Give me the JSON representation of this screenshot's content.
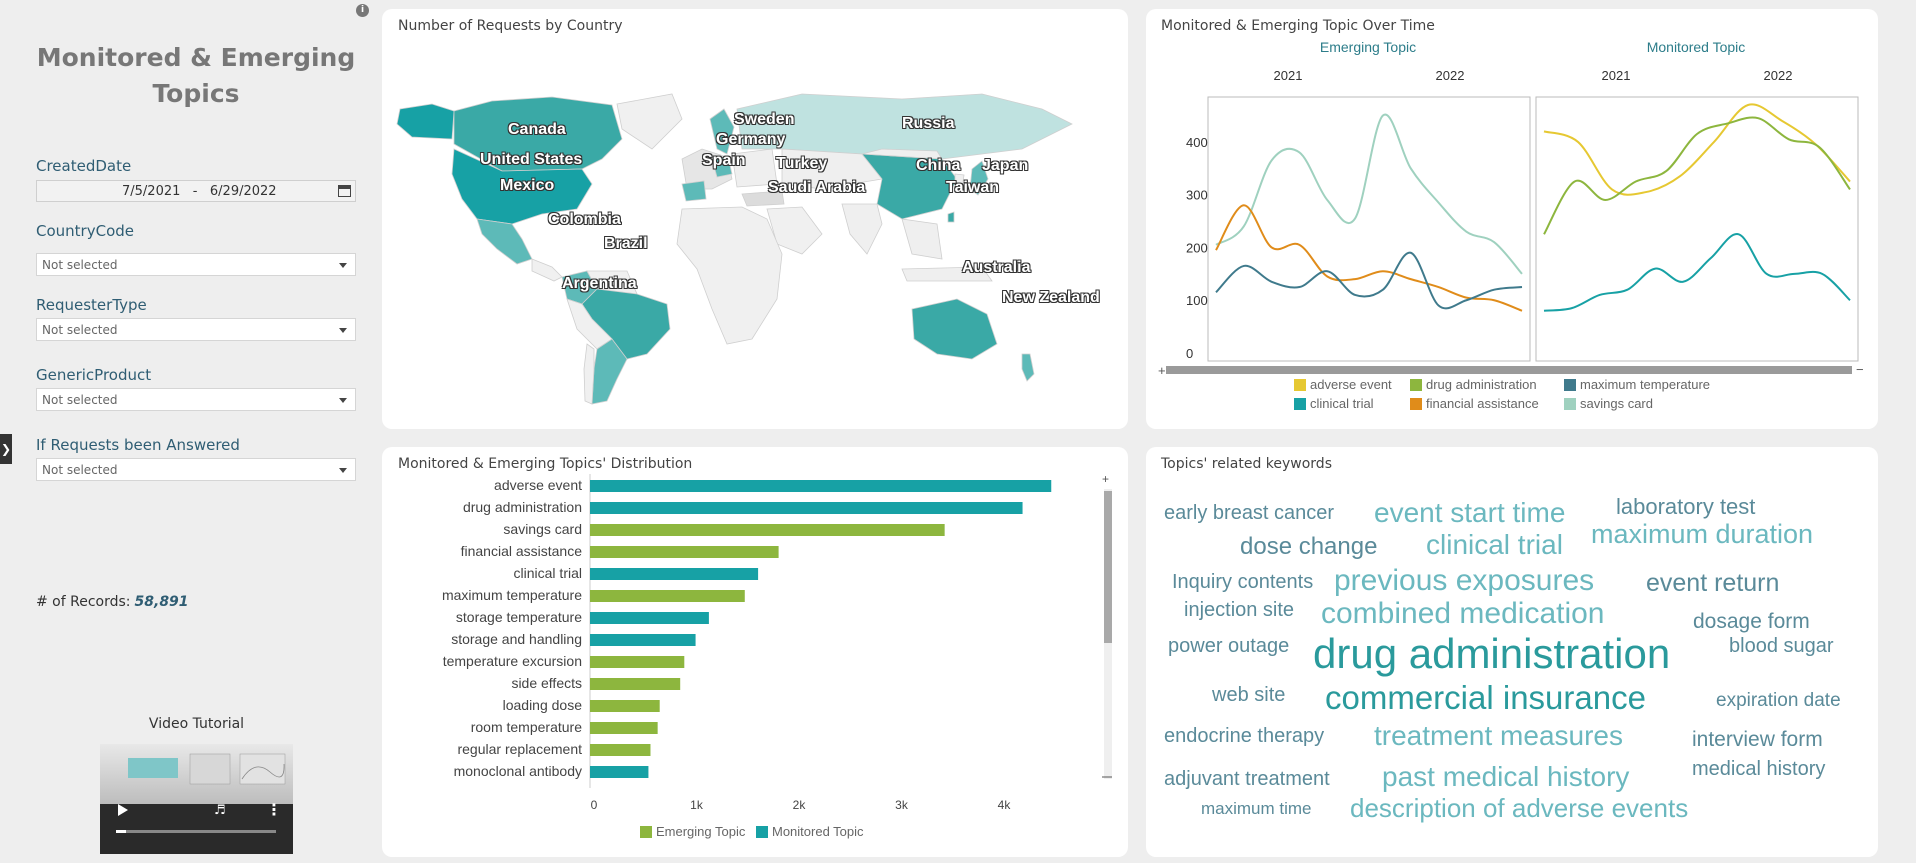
{
  "sidebar": {
    "title_line1": "Monitored & Emerging",
    "title_line2": "Topics",
    "info_icon": "i",
    "filters": {
      "created_date_label": "CreatedDate",
      "date_from": "7/5/2021",
      "date_sep": "-",
      "date_to": "6/29/2022",
      "country_label": "CountryCode",
      "country_value": "Not selected",
      "requester_label": "RequesterType",
      "requester_value": "Not selected",
      "product_label": "GenericProduct",
      "product_value": "Not selected",
      "answered_label": "If Requests been Answered",
      "answered_value": "Not selected"
    },
    "records_label": "# of Records:",
    "records_value": "58,891",
    "video_label": "Video Tutorial"
  },
  "map": {
    "title": "Number of Requests by Country",
    "labels": [
      "Canada",
      "United States",
      "Mexico",
      "Colombia",
      "Brazil",
      "Argentina",
      "Sweden",
      "Germany",
      "Spain",
      "Turkey",
      "Saudi Arabia",
      "Russia",
      "China",
      "Japan",
      "Taiwan",
      "Australia",
      "New Zealand"
    ]
  },
  "line": {
    "title": "Monitored & Emerging Topic Over Time",
    "panel_left": "Emerging Topic",
    "panel_right": "Monitored Topic",
    "year_2021": "2021",
    "year_2022": "2022",
    "y_ticks": [
      "400",
      "300",
      "200",
      "100",
      "0"
    ],
    "legend": [
      "adverse event",
      "drug administration",
      "maximum temperature",
      "clinical trial",
      "financial assistance",
      "savings card"
    ],
    "colors": {
      "adverse event": "#e6c832",
      "drug administration": "#8db63e",
      "maximum temperature": "#3f7a8c",
      "clinical trial": "#17a1a5",
      "financial assistance": "#e08c1a",
      "savings card": "#9fd1bf"
    }
  },
  "chart_data": [
    {
      "type": "bar",
      "title": "Monitored & Emerging Topics' Distribution",
      "categories": [
        "adverse event",
        "drug administration",
        "savings card",
        "financial assistance",
        "clinical trial",
        "maximum temperature",
        "storage temperature",
        "storage and handling",
        "temperature excursion",
        "side effects",
        "loading dose",
        "room temperature",
        "regular replacement",
        "monoclonal antibody"
      ],
      "values": [
        4500,
        4220,
        3460,
        1840,
        1640,
        1510,
        1160,
        1030,
        920,
        880,
        680,
        660,
        590,
        570
      ],
      "groups": [
        "Monitored Topic",
        "Monitored Topic",
        "Emerging Topic",
        "Emerging Topic",
        "Monitored Topic",
        "Emerging Topic",
        "Monitored Topic",
        "Monitored Topic",
        "Emerging Topic",
        "Emerging Topic",
        "Emerging Topic",
        "Emerging Topic",
        "Emerging Topic",
        "Monitored Topic"
      ],
      "x_ticks": [
        "0",
        "1k",
        "2k",
        "3k",
        "4k"
      ],
      "xlim": [
        0,
        4800
      ],
      "legend": [
        "Emerging Topic",
        "Monitored Topic"
      ],
      "colors": {
        "Emerging Topic": "#8db63e",
        "Monitored Topic": "#17a1a5"
      }
    },
    {
      "type": "line",
      "title": "Monitored & Emerging Topic Over Time",
      "ylim": [
        0,
        470
      ],
      "panels": [
        {
          "name": "Emerging Topic",
          "series": [
            {
              "name": "savings card",
              "values": [
                205,
                240,
                365,
                380,
                290,
                255,
                450,
                350,
                285,
                230,
                210,
                150
              ]
            },
            {
              "name": "financial assistance",
              "values": [
                195,
                280,
                200,
                205,
                145,
                140,
                155,
                140,
                125,
                105,
                100,
                80
              ]
            },
            {
              "name": "maximum temperature",
              "values": [
                115,
                165,
                135,
                125,
                155,
                110,
                120,
                190,
                90,
                100,
                120,
                125
              ]
            }
          ]
        },
        {
          "name": "Monitored Topic",
          "series": [
            {
              "name": "adverse event",
              "values": [
                420,
                400,
                310,
                305,
                335,
                400,
                470,
                440,
                395,
                325
              ]
            },
            {
              "name": "drug administration",
              "values": [
                225,
                325,
                290,
                325,
                345,
                415,
                435,
                445,
                405,
                390,
                310
              ]
            },
            {
              "name": "clinical trial",
              "values": [
                80,
                85,
                110,
                120,
                160,
                135,
                180,
                225,
                150,
                150,
                150,
                100
              ]
            }
          ]
        }
      ]
    }
  ],
  "bars": {
    "title": "Monitored & Emerging Topics' Distribution",
    "legend_emerging": "Emerging Topic",
    "legend_monitored": "Monitored Topic"
  },
  "keywords": {
    "title": "Topics' related keywords",
    "words": [
      {
        "t": "early breast cancer",
        "c": "#5a8a99"
      },
      {
        "t": "event start time",
        "c": "#6bb8bf"
      },
      {
        "t": "laboratory test",
        "c": "#5a8a99"
      },
      {
        "t": "dose change",
        "c": "#5a8a99"
      },
      {
        "t": "clinical trial",
        "c": "#6bb8bf"
      },
      {
        "t": "maximum duration",
        "c": "#6bb8bf"
      },
      {
        "t": "Inquiry contents",
        "c": "#5a8a99"
      },
      {
        "t": "previous exposures",
        "c": "#6bb8bf"
      },
      {
        "t": "event return",
        "c": "#5a8a99"
      },
      {
        "t": "injection site",
        "c": "#5a8a99"
      },
      {
        "t": "combined medication",
        "c": "#6bb8bf"
      },
      {
        "t": "dosage form",
        "c": "#5a8a99"
      },
      {
        "t": "power outage",
        "c": "#5a8a99"
      },
      {
        "t": "drug administration",
        "c": "#2a9a9c"
      },
      {
        "t": "blood sugar",
        "c": "#5a8a99"
      },
      {
        "t": "web site",
        "c": "#5a8a99"
      },
      {
        "t": "commercial insurance",
        "c": "#2a9a9c"
      },
      {
        "t": "expiration date",
        "c": "#5a8a99"
      },
      {
        "t": "endocrine therapy",
        "c": "#5a8a99"
      },
      {
        "t": "treatment measures",
        "c": "#6bb8bf"
      },
      {
        "t": "interview form",
        "c": "#5a8a99"
      },
      {
        "t": "adjuvant treatment",
        "c": "#5a8a99"
      },
      {
        "t": "past medical history",
        "c": "#6bb8bf"
      },
      {
        "t": "medical history",
        "c": "#5a8a99"
      },
      {
        "t": "maximum time",
        "c": "#5a8a99"
      },
      {
        "t": "description of adverse events",
        "c": "#6bb8bf"
      }
    ]
  }
}
